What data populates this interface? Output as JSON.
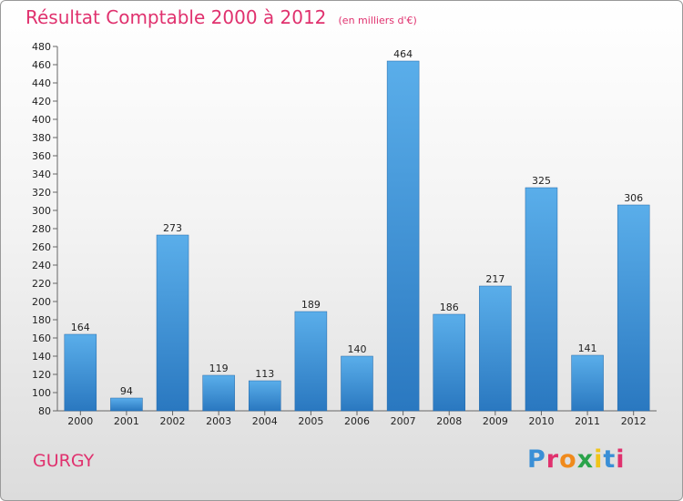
{
  "header": {
    "title": "Résultat Comptable 2000 à 2012",
    "subtitle": "(en milliers d'€)"
  },
  "footer": {
    "city": "GURGY",
    "brand": {
      "letters": [
        "P",
        "r",
        "o",
        "x",
        "i",
        "t",
        "i"
      ],
      "colors": [
        "#3a8fd6",
        "#e0316e",
        "#f08a1c",
        "#2aa34a",
        "#f0c419",
        "#3a8fd6",
        "#e0316e"
      ]
    }
  },
  "colors": {
    "bar_light": "#5aaeea",
    "bar_dark": "#2a78c0",
    "accent": "#e0316e"
  },
  "chart_data": {
    "type": "bar",
    "title": "Résultat Comptable 2000 à 2012",
    "xlabel": "",
    "ylabel": "",
    "categories": [
      "2000",
      "2001",
      "2002",
      "2003",
      "2004",
      "2005",
      "2006",
      "2007",
      "2008",
      "2009",
      "2010",
      "2011",
      "2012"
    ],
    "values": [
      164,
      94,
      273,
      119,
      113,
      189,
      140,
      464,
      186,
      217,
      325,
      141,
      306
    ],
    "ylim": [
      80,
      480
    ],
    "ytick_step": 20,
    "grid": false
  }
}
